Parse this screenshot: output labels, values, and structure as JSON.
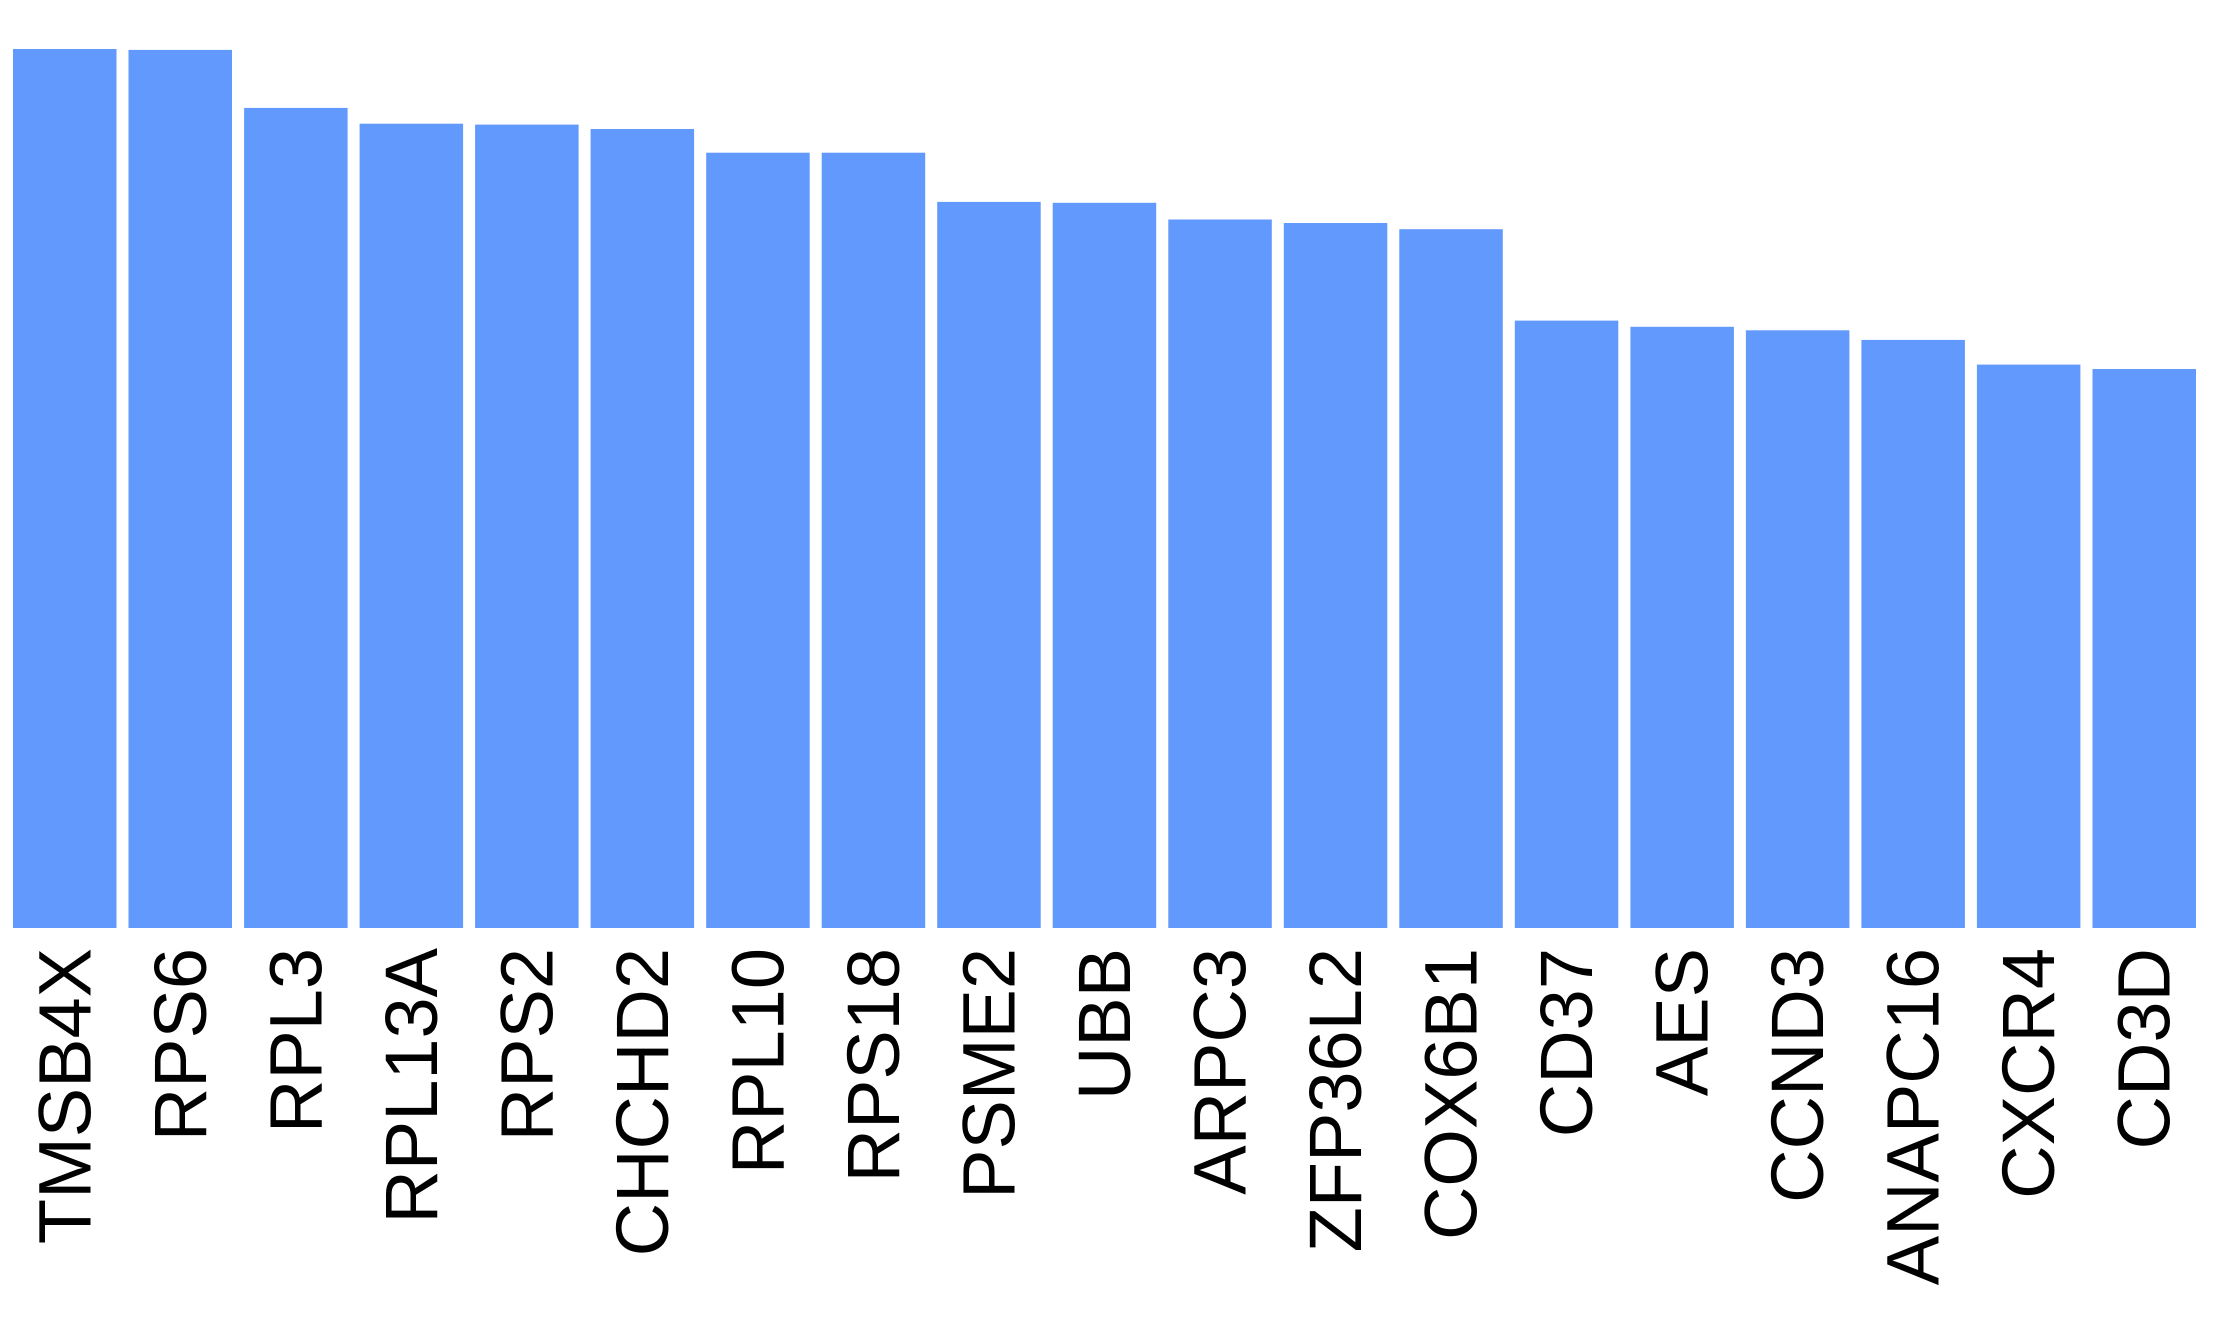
{
  "chart_data": {
    "type": "bar",
    "title": "",
    "xlabel": "",
    "ylabel": "",
    "categories": [
      "TMSB4X",
      "RPS6",
      "RPL3",
      "RPL13A",
      "RPS2",
      "CHCHD2",
      "RPL10",
      "RPS18",
      "PSME2",
      "UBB",
      "ARPC3",
      "ZFP36L2",
      "COX6B1",
      "CD37",
      "AES",
      "CCND3",
      "ANAPC16",
      "CXCR4",
      "CD3D"
    ],
    "values": [
      1.0,
      0.999,
      0.933,
      0.915,
      0.914,
      0.909,
      0.882,
      0.882,
      0.826,
      0.825,
      0.806,
      0.802,
      0.795,
      0.691,
      0.684,
      0.68,
      0.669,
      0.641,
      0.636
    ],
    "ylim": [
      0,
      1.0
    ],
    "grid": false,
    "legend": "none",
    "bar_color": "#6199fc",
    "label_rotation": -90
  }
}
